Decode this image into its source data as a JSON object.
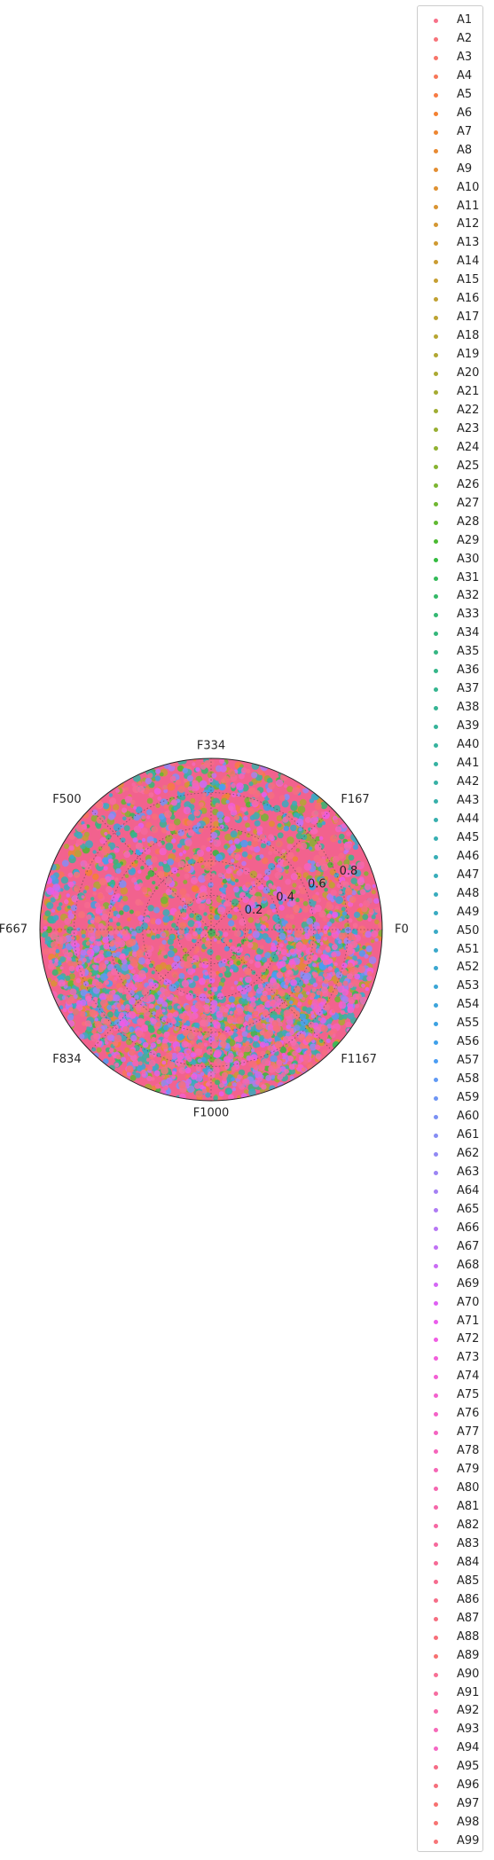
{
  "chart_data": {
    "type": "scatter",
    "projection": "polar",
    "angular_ticks": [
      "F0",
      "F167",
      "F334",
      "F500",
      "F667",
      "F834",
      "F1000",
      "F1167"
    ],
    "radial_ticks": [
      0.2,
      0.4,
      0.6,
      0.8
    ],
    "rlim": [
      0,
      1.0
    ],
    "grid": true,
    "legend_placement": "outside right",
    "background_color": "#f2628e",
    "point_count_per_series_estimate": 40,
    "series": [
      {
        "name": "A1",
        "color": "#f77189"
      },
      {
        "name": "A2",
        "color": "#f7737a"
      },
      {
        "name": "A3",
        "color": "#f7756a"
      },
      {
        "name": "A4",
        "color": "#f77759"
      },
      {
        "name": "A5",
        "color": "#f77b43"
      },
      {
        "name": "A6",
        "color": "#f38131"
      },
      {
        "name": "A7",
        "color": "#ed8632"
      },
      {
        "name": "A8",
        "color": "#e88a32"
      },
      {
        "name": "A9",
        "color": "#e38e32"
      },
      {
        "name": "A10",
        "color": "#de9132"
      },
      {
        "name": "A11",
        "color": "#d99432"
      },
      {
        "name": "A12",
        "color": "#d49732"
      },
      {
        "name": "A13",
        "color": "#cf9a32"
      },
      {
        "name": "A14",
        "color": "#ca9c32"
      },
      {
        "name": "A15",
        "color": "#c69f32"
      },
      {
        "name": "A16",
        "color": "#c1a132"
      },
      {
        "name": "A17",
        "color": "#bca332"
      },
      {
        "name": "A18",
        "color": "#b7a532"
      },
      {
        "name": "A19",
        "color": "#b1a732"
      },
      {
        "name": "A20",
        "color": "#aba932"
      },
      {
        "name": "A21",
        "color": "#a5ab32"
      },
      {
        "name": "A22",
        "color": "#9fad32"
      },
      {
        "name": "A23",
        "color": "#98af32"
      },
      {
        "name": "A24",
        "color": "#90b131"
      },
      {
        "name": "A25",
        "color": "#87b331"
      },
      {
        "name": "A26",
        "color": "#7db531"
      },
      {
        "name": "A27",
        "color": "#70b731"
      },
      {
        "name": "A28",
        "color": "#60b931"
      },
      {
        "name": "A29",
        "color": "#4aba31"
      },
      {
        "name": "A30",
        "color": "#33bb3f"
      },
      {
        "name": "A31",
        "color": "#33ba58"
      },
      {
        "name": "A32",
        "color": "#34b967"
      },
      {
        "name": "A33",
        "color": "#34b872"
      },
      {
        "name": "A34",
        "color": "#35b77b"
      },
      {
        "name": "A35",
        "color": "#35b683"
      },
      {
        "name": "A36",
        "color": "#35b689"
      },
      {
        "name": "A37",
        "color": "#35b58f"
      },
      {
        "name": "A38",
        "color": "#36b494"
      },
      {
        "name": "A39",
        "color": "#36b399"
      },
      {
        "name": "A40",
        "color": "#36b39e"
      },
      {
        "name": "A41",
        "color": "#36b2a2"
      },
      {
        "name": "A42",
        "color": "#37b1a6"
      },
      {
        "name": "A43",
        "color": "#37b0aa"
      },
      {
        "name": "A44",
        "color": "#37afae"
      },
      {
        "name": "A45",
        "color": "#38afb2"
      },
      {
        "name": "A46",
        "color": "#38aeb6"
      },
      {
        "name": "A47",
        "color": "#38adba"
      },
      {
        "name": "A48",
        "color": "#39acbe"
      },
      {
        "name": "A49",
        "color": "#39abc2"
      },
      {
        "name": "A50",
        "color": "#3aaac6"
      },
      {
        "name": "A51",
        "color": "#3aa9cb"
      },
      {
        "name": "A52",
        "color": "#3ba7d0"
      },
      {
        "name": "A53",
        "color": "#3ba6d5"
      },
      {
        "name": "A54",
        "color": "#3ca4db"
      },
      {
        "name": "A55",
        "color": "#3da2e2"
      },
      {
        "name": "A56",
        "color": "#3ea0ea"
      },
      {
        "name": "A57",
        "color": "#4b9df4"
      },
      {
        "name": "A58",
        "color": "#5f99f4"
      },
      {
        "name": "A59",
        "color": "#6e95f4"
      },
      {
        "name": "A60",
        "color": "#7b91f4"
      },
      {
        "name": "A61",
        "color": "#868df4"
      },
      {
        "name": "A62",
        "color": "#9189f4"
      },
      {
        "name": "A63",
        "color": "#9b85f4"
      },
      {
        "name": "A64",
        "color": "#a480f4"
      },
      {
        "name": "A65",
        "color": "#ae7bf4"
      },
      {
        "name": "A66",
        "color": "#b776f4"
      },
      {
        "name": "A67",
        "color": "#c071f4"
      },
      {
        "name": "A68",
        "color": "#ca6cf4"
      },
      {
        "name": "A69",
        "color": "#d466f4"
      },
      {
        "name": "A70",
        "color": "#df5ff4"
      },
      {
        "name": "A71",
        "color": "#ea5cec"
      },
      {
        "name": "A72",
        "color": "#f05ce3"
      },
      {
        "name": "A73",
        "color": "#f25edb"
      },
      {
        "name": "A74",
        "color": "#f35fd4"
      },
      {
        "name": "A75",
        "color": "#f361cd"
      },
      {
        "name": "A76",
        "color": "#f462c7"
      },
      {
        "name": "A77",
        "color": "#f463c1"
      },
      {
        "name": "A78",
        "color": "#f564bb"
      },
      {
        "name": "A79",
        "color": "#f565b5"
      },
      {
        "name": "A80",
        "color": "#f566af"
      },
      {
        "name": "A81",
        "color": "#f567a9"
      },
      {
        "name": "A82",
        "color": "#f668a3"
      },
      {
        "name": "A83",
        "color": "#f6699c"
      },
      {
        "name": "A84",
        "color": "#f66a96"
      },
      {
        "name": "A85",
        "color": "#f66b8f"
      },
      {
        "name": "A86",
        "color": "#f66d88"
      },
      {
        "name": "A87",
        "color": "#f66e80"
      },
      {
        "name": "A88",
        "color": "#f76f79"
      },
      {
        "name": "A89",
        "color": "#f77070"
      },
      {
        "name": "A90",
        "color": "#f76f94"
      },
      {
        "name": "A91",
        "color": "#f66da0"
      },
      {
        "name": "A92",
        "color": "#f66bac"
      },
      {
        "name": "A93",
        "color": "#f669b8"
      },
      {
        "name": "A94",
        "color": "#f567c4"
      },
      {
        "name": "A95",
        "color": "#f56c86"
      },
      {
        "name": "A96",
        "color": "#f6707c"
      },
      {
        "name": "A97",
        "color": "#f77170"
      },
      {
        "name": "A98",
        "color": "#f77473"
      },
      {
        "name": "A99",
        "color": "#f77578"
      }
    ]
  }
}
